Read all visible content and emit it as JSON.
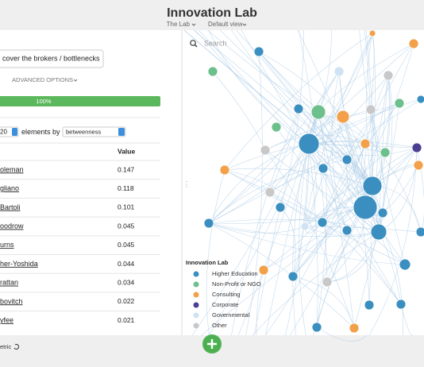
{
  "header": {
    "title": "Innovation Lab",
    "breadcrumb": [
      "The Lab",
      "Default view"
    ]
  },
  "left_panel": {
    "prompt": "cover the brokers / bottlenecks",
    "advanced_options": "ADVANCED OPTIONS",
    "progress": "100%",
    "count": "20",
    "elements_by": "elements by",
    "metric": "betweenness",
    "table": {
      "header": "Value",
      "rows": [
        [
          "oleman",
          "0.147"
        ],
        [
          "gliano",
          "0.118"
        ],
        [
          "Bartoli",
          "0.101"
        ],
        [
          "oodrow",
          "0.045"
        ],
        [
          "urns",
          "0.045"
        ],
        [
          "her-Yoshida",
          "0.044"
        ],
        [
          "rattan",
          "0.034"
        ],
        [
          "bovitch",
          "0.022"
        ],
        [
          "yfee",
          "0.021"
        ]
      ]
    }
  },
  "search": "Search",
  "legend": {
    "title": "Innovation Lab",
    "items": [
      "Higher Education",
      "Non-Profit or NGO",
      "Consulting",
      "Corporate",
      "Governmental",
      "Other"
    ]
  },
  "footer": "etric"
}
